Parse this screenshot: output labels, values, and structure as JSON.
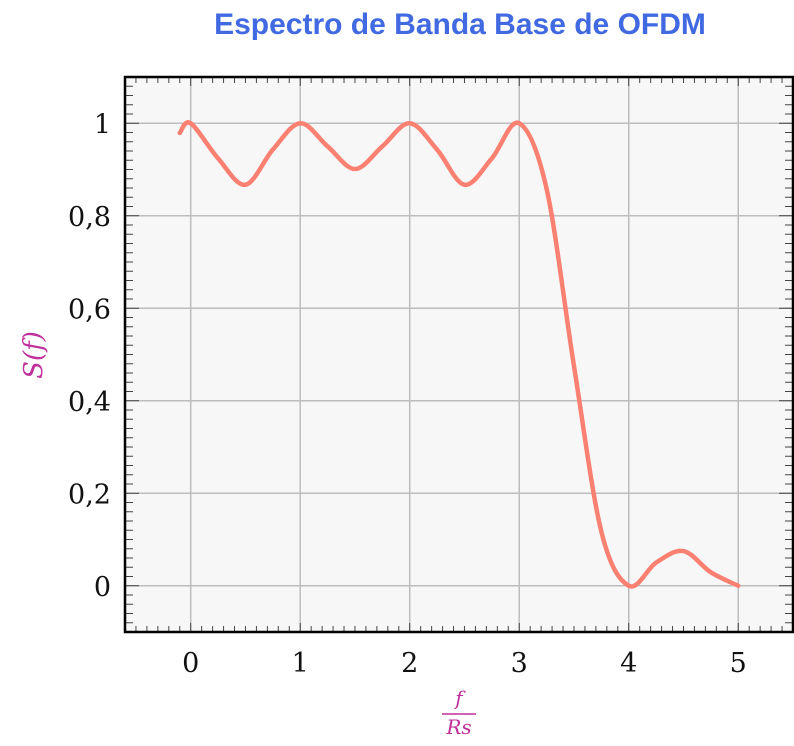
{
  "chart_data": {
    "type": "line",
    "title": "Espectro de Banda Base de OFDM",
    "xlabel_numerator": "f",
    "xlabel_denominator": "Rs",
    "ylabel": "S(f)",
    "xlim": [
      -0.6,
      5.5
    ],
    "ylim": [
      -0.1,
      1.1
    ],
    "xticks": [
      0,
      1,
      2,
      3,
      4,
      5
    ],
    "xtick_labels": [
      "0",
      "1",
      "2",
      "3",
      "4",
      "5"
    ],
    "yticks": [
      0,
      0.2,
      0.4,
      0.6,
      0.8,
      1
    ],
    "ytick_labels": [
      "0",
      "0,2",
      "0,4",
      "0,6",
      "0,8",
      "1"
    ],
    "grid": true,
    "series": [
      {
        "x": [
          -0.1,
          0,
          0.25,
          0.5,
          0.75,
          1,
          1.25,
          1.5,
          1.75,
          2,
          2.25,
          2.5,
          2.75,
          3,
          3.25,
          3.5,
          3.75,
          4,
          4.25,
          4.5,
          4.75,
          5
        ],
        "y": [
          0.979,
          1.0,
          0.924,
          0.867,
          0.943,
          1.0,
          0.95,
          0.901,
          0.95,
          1.0,
          0.943,
          0.867,
          0.924,
          1.0,
          0.858,
          0.475,
          0.117,
          0.0,
          0.05,
          0.075,
          0.029,
          0.0
        ]
      }
    ],
    "colors": {
      "title": "#4169e1",
      "line": "#fa8072",
      "labels": "#c0309a",
      "plot_bg": "#f7f7f7",
      "grid": "#bdbdbd"
    }
  }
}
